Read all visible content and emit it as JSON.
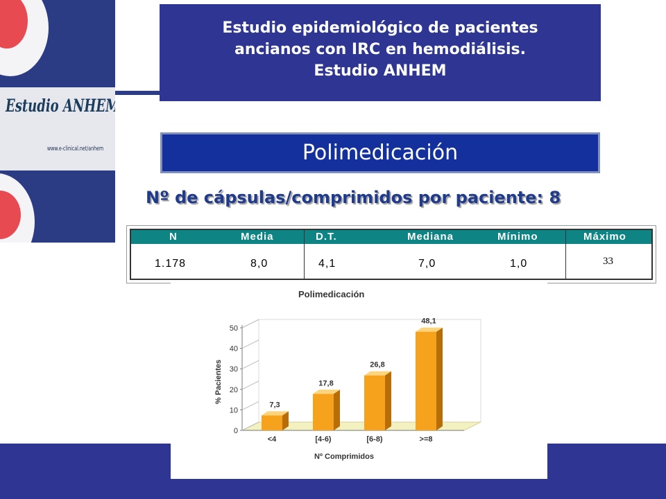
{
  "logo": {
    "text": "Estudio ANHEM",
    "url": "www.e-clinical.net/anhem"
  },
  "header": {
    "title_line1": "Estudio epidemiológico de pacientes",
    "title_line2": "ancianos con IRC en hemodiálisis.",
    "title_line3": "Estudio ANHEM"
  },
  "section": {
    "title": "Polimedicación"
  },
  "subtitle": "Nº de cápsulas/comprimidos por paciente:  8",
  "stats": {
    "headers": [
      "N",
      "Media",
      "D.T.",
      "Mediana",
      "Mínimo",
      "Máximo"
    ],
    "values": [
      "1.178",
      "8,0",
      "4,1",
      "7,0",
      "1,0",
      "33"
    ]
  },
  "colors": {
    "title_bg": "#2e3592",
    "section_bg": "#13309d",
    "table_header_bg": "#0e8484",
    "bar_fill": "#f7a21c",
    "floor_fill": "#f3f1bf"
  },
  "chart_data": {
    "type": "bar",
    "title": "Polimedicación",
    "xlabel": "Nº Comprimidos",
    "ylabel": "% Pacientes",
    "categories": [
      "<4",
      "[4-6)",
      "[6-8)",
      ">=8"
    ],
    "values": [
      7.3,
      17.8,
      26.8,
      48.1
    ],
    "value_labels": [
      "7,3",
      "17,8",
      "26,8",
      "48,1"
    ],
    "ylim": [
      0,
      50
    ],
    "yticks": [
      0,
      10,
      20,
      30,
      40,
      50
    ],
    "grid": false,
    "legend": "none",
    "style": "3d"
  }
}
